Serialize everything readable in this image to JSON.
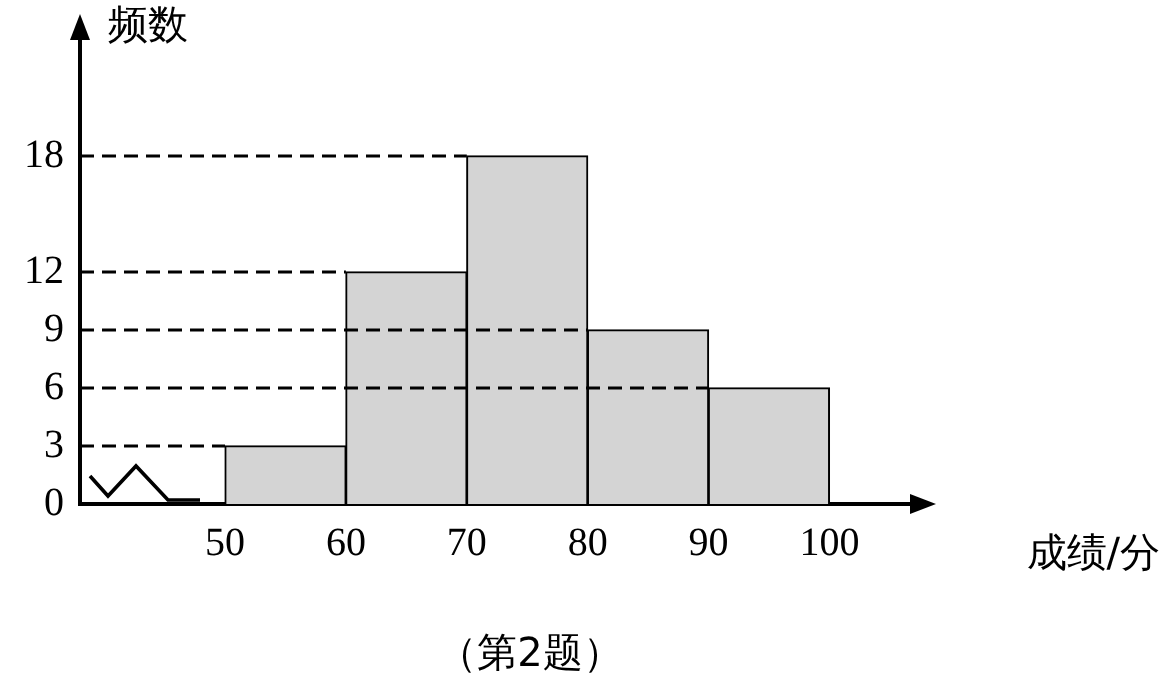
{
  "chart_data": {
    "type": "histogram",
    "xlabel": "成绩/分",
    "ylabel": "频数",
    "annotations": [
      "（第2题）"
    ],
    "bins": [
      50,
      60,
      70,
      80,
      90,
      100
    ],
    "values": [
      3,
      12,
      18,
      9,
      6
    ],
    "color": "#d4d4d4",
    "xlim": [
      38,
      107
    ],
    "xticks": [
      50,
      60,
      70,
      80,
      90,
      100
    ],
    "ylim": [
      0,
      24
    ],
    "yticks": [
      0,
      3,
      6,
      9,
      12,
      18
    ],
    "ref_lines": [
      {
        "axis": "y",
        "value": 3,
        "line_style": "dashed"
      },
      {
        "axis": "y",
        "value": 6,
        "line_style": "dashed"
      },
      {
        "axis": "y",
        "value": 9,
        "line_style": "dashed"
      },
      {
        "axis": "y",
        "value": 12,
        "line_style": "dashed"
      },
      {
        "axis": "y",
        "value": 18,
        "line_style": "dashed"
      }
    ],
    "grid": false,
    "legend": false
  }
}
